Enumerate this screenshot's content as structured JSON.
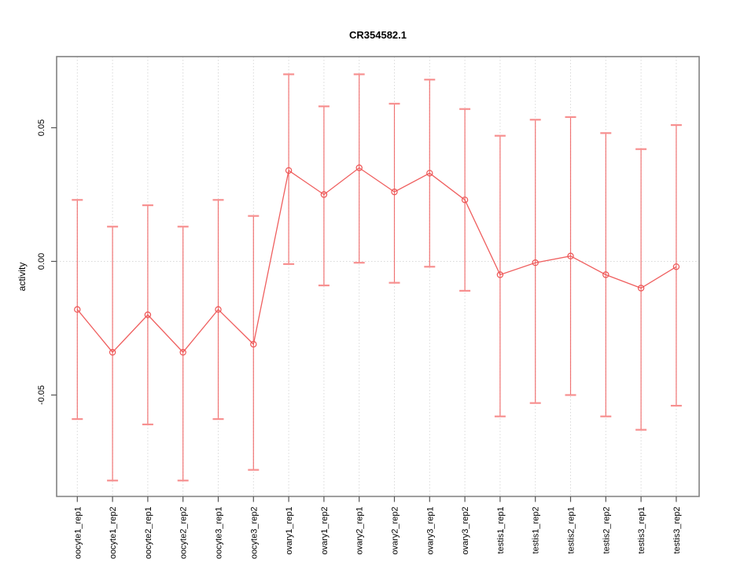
{
  "chart_data": {
    "type": "line",
    "title": "CR354582.1",
    "xlabel": "",
    "ylabel": "activity",
    "categories": [
      "oocyte1_rep1",
      "oocyte1_rep2",
      "oocyte2_rep1",
      "oocyte2_rep2",
      "oocyte3_rep1",
      "oocyte3_rep2",
      "ovary1_rep1",
      "ovary1_rep2",
      "ovary2_rep1",
      "ovary2_rep2",
      "ovary3_rep1",
      "ovary3_rep2",
      "testis1_rep1",
      "testis1_rep2",
      "testis2_rep1",
      "testis2_rep2",
      "testis3_rep1",
      "testis3_rep2"
    ],
    "series": [
      {
        "name": "activity",
        "values": [
          -0.018,
          -0.034,
          -0.02,
          -0.034,
          -0.018,
          -0.031,
          0.034,
          0.025,
          0.035,
          0.026,
          0.033,
          0.023,
          -0.005,
          -0.0005,
          0.002,
          -0.005,
          -0.01,
          -0.002
        ],
        "error_upper": [
          0.023,
          0.013,
          0.021,
          0.013,
          0.023,
          0.017,
          0.07,
          0.058,
          0.07,
          0.059,
          0.068,
          0.057,
          0.047,
          0.053,
          0.054,
          0.048,
          0.042,
          0.051
        ],
        "error_lower": [
          -0.059,
          -0.082,
          -0.061,
          -0.082,
          -0.059,
          -0.078,
          -0.001,
          -0.009,
          -0.0005,
          -0.008,
          -0.002,
          -0.011,
          -0.058,
          -0.053,
          -0.05,
          -0.058,
          -0.063,
          -0.054
        ]
      }
    ],
    "yticks": [
      {
        "label": "0.05",
        "value": 0.05
      },
      {
        "label": "0.00",
        "value": 0.0
      },
      {
        "label": "-0.05",
        "value": -0.05
      }
    ],
    "ylim": [
      -0.088,
      0.077
    ],
    "grid": "dotted vertical line per category, dotted horizontal line at zero",
    "legend": "none",
    "marker": "open-circle",
    "colors": {
      "line": "#ef5f5f",
      "cap": "#f79090",
      "point_stroke": "#ee5555",
      "grid": "#d9d9d9",
      "box": "#828282",
      "tick": "#555555",
      "text": "#000000",
      "background": "#ffffff"
    }
  }
}
